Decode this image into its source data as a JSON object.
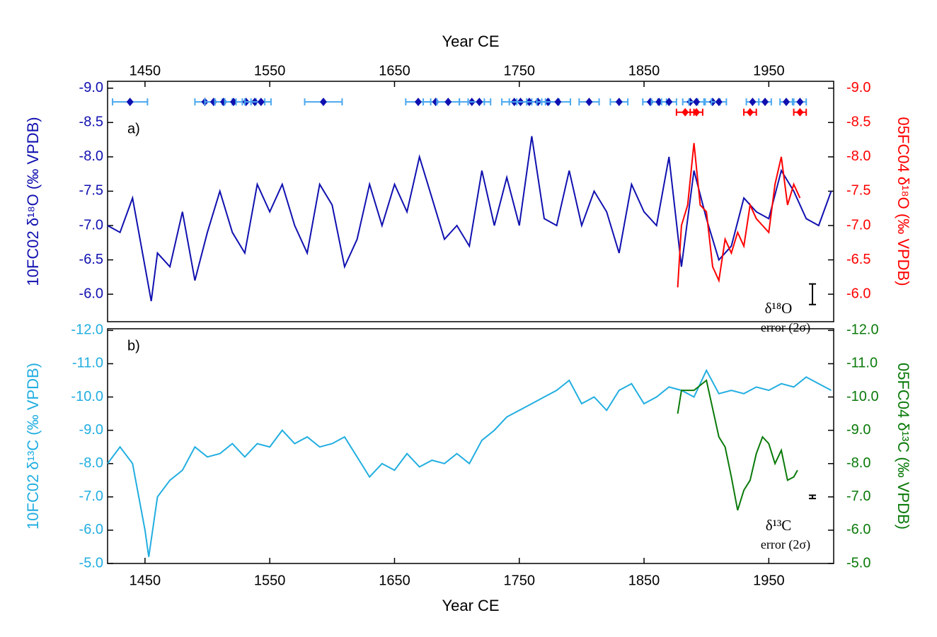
{
  "chart_data": [
    {
      "type": "line",
      "panel_label": "a)",
      "x_label": "Year CE",
      "xaxis_position": "top",
      "xlim": [
        1420,
        2002
      ],
      "xticks": [
        1450,
        1550,
        1650,
        1750,
        1850,
        1950
      ],
      "y_label": "10FC02 δ¹⁸O (‰ VPDB)",
      "y_label_color": "#1010b0",
      "y2_label": "05FC04 δ¹⁸O (‰ VPDB)",
      "y2_label_color": "#ff0000",
      "ylim": [
        -5.6,
        -9.1
      ],
      "yticks": [
        {
          "value": -9,
          "label": "-9.0"
        },
        -8.5,
        {
          "value": -8,
          "label": "-8.0"
        },
        -7.5,
        {
          "value": -7,
          "label": "-7.0"
        },
        -6.5,
        {
          "value": -6,
          "label": "-6.0"
        }
      ],
      "y2lim": [
        -5.6,
        -9.1
      ],
      "y2ticks": [
        {
          "value": -9,
          "label": "-9.0"
        },
        -8.5,
        {
          "value": -8,
          "label": "-8.0"
        },
        -7.5,
        {
          "value": -7,
          "label": "-7.0"
        },
        -6.5,
        {
          "value": -6,
          "label": "-6.0"
        }
      ],
      "series": [
        {
          "color": "#1010b0",
          "x": [
            1420,
            1430,
            1440,
            1450,
            1455,
            1460,
            1470,
            1480,
            1490,
            1500,
            1510,
            1520,
            1530,
            1540,
            1550,
            1560,
            1570,
            1580,
            1590,
            1600,
            1610,
            1620,
            1630,
            1640,
            1650,
            1660,
            1670,
            1680,
            1690,
            1700,
            1710,
            1720,
            1730,
            1740,
            1750,
            1760,
            1770,
            1780,
            1790,
            1800,
            1810,
            1820,
            1830,
            1840,
            1850,
            1860,
            1870,
            1880,
            1890,
            1900,
            1910,
            1920,
            1930,
            1940,
            1950,
            1960,
            1970,
            1980,
            1990,
            2000
          ],
          "values": [
            -7.0,
            -6.9,
            -7.4,
            -6.4,
            -5.9,
            -6.6,
            -6.4,
            -7.2,
            -6.2,
            -6.9,
            -7.5,
            -6.9,
            -6.6,
            -7.6,
            -7.2,
            -7.6,
            -7.0,
            -6.6,
            -7.6,
            -7.3,
            -6.4,
            -6.8,
            -7.6,
            -7.0,
            -7.6,
            -7.2,
            -8.0,
            -7.4,
            -6.8,
            -7.0,
            -6.7,
            -7.8,
            -7.0,
            -7.7,
            -7.0,
            -8.3,
            -7.1,
            -7.0,
            -7.8,
            -7.0,
            -7.5,
            -7.2,
            -6.6,
            -7.6,
            -7.2,
            -7.0,
            -8.0,
            -6.4,
            -7.8,
            -7.1,
            -6.5,
            -6.7,
            -7.4,
            -7.2,
            -7.1,
            -7.8,
            -7.5,
            -7.1,
            -7.0,
            -7.5
          ]
        },
        {
          "color": "#ff0000",
          "axis": "y2",
          "x": [
            1877,
            1880,
            1885,
            1890,
            1895,
            1900,
            1905,
            1910,
            1915,
            1920,
            1925,
            1930,
            1935,
            1940,
            1945,
            1950,
            1955,
            1960,
            1965,
            1970,
            1975
          ],
          "values": [
            -6.1,
            -7.0,
            -7.3,
            -8.2,
            -7.3,
            -7.2,
            -6.4,
            -6.2,
            -6.8,
            -6.6,
            -6.9,
            -6.7,
            -7.3,
            -7.1,
            -7.0,
            -6.9,
            -7.6,
            -8.0,
            -7.3,
            -7.6,
            -7.4
          ]
        }
      ],
      "dates": [
        {
          "color": "#1010b0",
          "bar_color": "#4aa8f0",
          "y": -8.8,
          "x": [
            1438,
            1498,
            1505,
            1513,
            1521,
            1531,
            1538,
            1543,
            1593,
            1669,
            1683,
            1693,
            1712,
            1718,
            1746,
            1751,
            1758,
            1765,
            1773,
            1781,
            1806,
            1830,
            1855,
            1862,
            1870,
            1887,
            1892,
            1905,
            1910,
            1937,
            1947,
            1964,
            1975
          ],
          "xerr": [
            14,
            8,
            7,
            7,
            7,
            8,
            8,
            8,
            15,
            10,
            10,
            9,
            10,
            9,
            10,
            9,
            10,
            9,
            9,
            10,
            8,
            7,
            6,
            6,
            6,
            6,
            6,
            6,
            6,
            5,
            5,
            5,
            5
          ]
        },
        {
          "color": "#ff0000",
          "bar_color": "#ff0000",
          "y": -8.65,
          "x": [
            1883,
            1892,
            1935,
            1975
          ],
          "xerr": [
            7,
            5,
            5,
            5
          ]
        }
      ],
      "error_bar": {
        "x": 1985,
        "y": -6.0,
        "err": 0.15,
        "label": "δ¹⁸O",
        "sublabel": "error (2σ)"
      }
    },
    {
      "type": "line",
      "panel_label": "b)",
      "x_label": "Year CE",
      "xaxis_position": "bottom",
      "xlim": [
        1420,
        2002
      ],
      "xticks": [
        1450,
        1550,
        1650,
        1750,
        1850,
        1950
      ],
      "y_label": "10FC02 δ¹³C (‰ VPDB)",
      "y_label_color": "#22aee0",
      "y2_label": "05FC04 δ¹³C (‰ VPDB)",
      "y2_label_color": "#0a7a0a",
      "ylim": [
        -5,
        -12.05
      ],
      "yticks": [
        {
          "value": -12,
          "label": "-12.0"
        },
        {
          "value": -11,
          "label": "-11.0"
        },
        {
          "value": -10,
          "label": "-10.0"
        },
        {
          "value": -9,
          "label": "-9.0"
        },
        {
          "value": -8,
          "label": "-8.0"
        },
        {
          "value": -7,
          "label": "-7.0"
        },
        {
          "value": -6,
          "label": "-6.0"
        },
        {
          "value": -5,
          "label": "-5.0"
        }
      ],
      "y2lim": [
        -5,
        -12.05
      ],
      "y2ticks": [
        {
          "value": -12,
          "label": "-12.0"
        },
        {
          "value": -11,
          "label": "-11.0"
        },
        {
          "value": -10,
          "label": "-10.0"
        },
        {
          "value": -9,
          "label": "-9.0"
        },
        {
          "value": -8,
          "label": "-8.0"
        },
        {
          "value": -7,
          "label": "-7.0"
        },
        {
          "value": -6,
          "label": "-6.0"
        },
        {
          "value": -5,
          "label": "-5.0"
        }
      ],
      "series": [
        {
          "color": "#22aee0",
          "x": [
            1420,
            1430,
            1440,
            1450,
            1453,
            1460,
            1470,
            1480,
            1490,
            1500,
            1510,
            1520,
            1530,
            1540,
            1550,
            1560,
            1570,
            1580,
            1590,
            1600,
            1610,
            1620,
            1630,
            1640,
            1650,
            1660,
            1670,
            1680,
            1690,
            1700,
            1710,
            1720,
            1730,
            1740,
            1750,
            1760,
            1770,
            1780,
            1790,
            1800,
            1810,
            1820,
            1830,
            1840,
            1850,
            1860,
            1870,
            1880,
            1890,
            1900,
            1910,
            1920,
            1930,
            1940,
            1950,
            1960,
            1970,
            1980,
            1990,
            2000
          ],
          "values": [
            -8.0,
            -8.5,
            -8.0,
            -6.0,
            -5.2,
            -7.0,
            -7.5,
            -7.8,
            -8.5,
            -8.2,
            -8.3,
            -8.6,
            -8.2,
            -8.6,
            -8.5,
            -9.0,
            -8.6,
            -8.8,
            -8.5,
            -8.6,
            -8.8,
            -8.2,
            -7.6,
            -8.0,
            -7.8,
            -8.3,
            -7.9,
            -8.1,
            -8.0,
            -8.3,
            -8.0,
            -8.7,
            -9.0,
            -9.4,
            -9.6,
            -9.8,
            -10.0,
            -10.2,
            -10.5,
            -9.8,
            -10.0,
            -9.6,
            -10.2,
            -10.4,
            -9.8,
            -10.0,
            -10.3,
            -10.2,
            -10.0,
            -10.8,
            -10.1,
            -10.2,
            -10.1,
            -10.3,
            -10.2,
            -10.4,
            -10.3,
            -10.6,
            -10.4,
            -10.2
          ]
        },
        {
          "color": "#0a7a0a",
          "axis": "y2",
          "x": [
            1877,
            1880,
            1890,
            1900,
            1910,
            1915,
            1920,
            1925,
            1930,
            1935,
            1940,
            1945,
            1950,
            1955,
            1960,
            1965,
            1970,
            1973
          ],
          "values": [
            -9.5,
            -10.2,
            -10.2,
            -10.5,
            -8.8,
            -8.5,
            -7.6,
            -6.6,
            -7.2,
            -7.5,
            -8.3,
            -8.8,
            -8.6,
            -8.0,
            -8.4,
            -7.5,
            -7.6,
            -7.8
          ]
        }
      ],
      "error_bar": {
        "x": 1985,
        "y": -7.0,
        "err": 0.05,
        "label": "δ¹³C",
        "sublabel": "error (2σ)"
      }
    }
  ]
}
